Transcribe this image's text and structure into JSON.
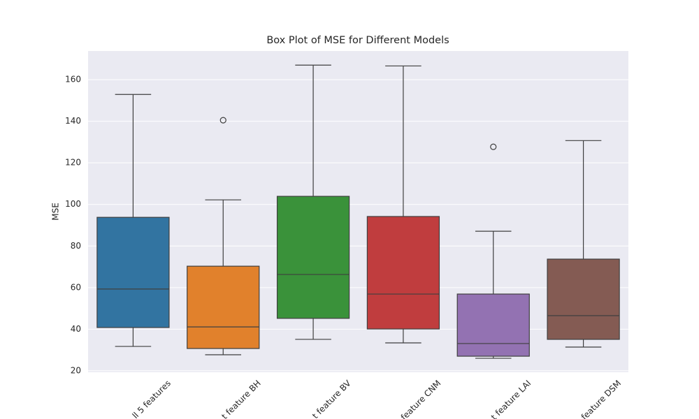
{
  "chart_data": {
    "type": "box",
    "title": "Box Plot of MSE for Different Models",
    "y_label": "MSE",
    "categories": [
      "ll 5 features",
      "t feature BH",
      "t feature BV",
      "feature CNM",
      "t feature LAI",
      "feature DSM"
    ],
    "series": [
      {
        "color": "#3274a1",
        "min": 31.7,
        "q1": 40.8,
        "median": 59.3,
        "q3": 93.8,
        "max": 152.9,
        "outliers": []
      },
      {
        "color": "#e1812c",
        "min": 27.7,
        "q1": 30.7,
        "median": 41.1,
        "q3": 70.3,
        "max": 102.2,
        "outliers": [
          140.5
        ]
      },
      {
        "color": "#3a923a",
        "min": 35.1,
        "q1": 45.2,
        "median": 66.3,
        "q3": 103.9,
        "max": 167.0,
        "outliers": []
      },
      {
        "color": "#c03d3e",
        "min": 33.4,
        "q1": 40.1,
        "median": 56.9,
        "q3": 94.2,
        "max": 166.6,
        "outliers": []
      },
      {
        "color": "#9372b2",
        "min": 26.0,
        "q1": 27.0,
        "median": 33.1,
        "q3": 56.9,
        "max": 87.1,
        "outliers": [
          127.7
        ]
      },
      {
        "color": "#845b53",
        "min": 31.4,
        "q1": 35.1,
        "median": 46.5,
        "q3": 73.7,
        "max": 130.7,
        "outliers": []
      }
    ],
    "ylim": [
      19.3,
      173.8
    ],
    "yticks": [
      20,
      40,
      60,
      80,
      100,
      120,
      140,
      160
    ],
    "grid": true
  }
}
